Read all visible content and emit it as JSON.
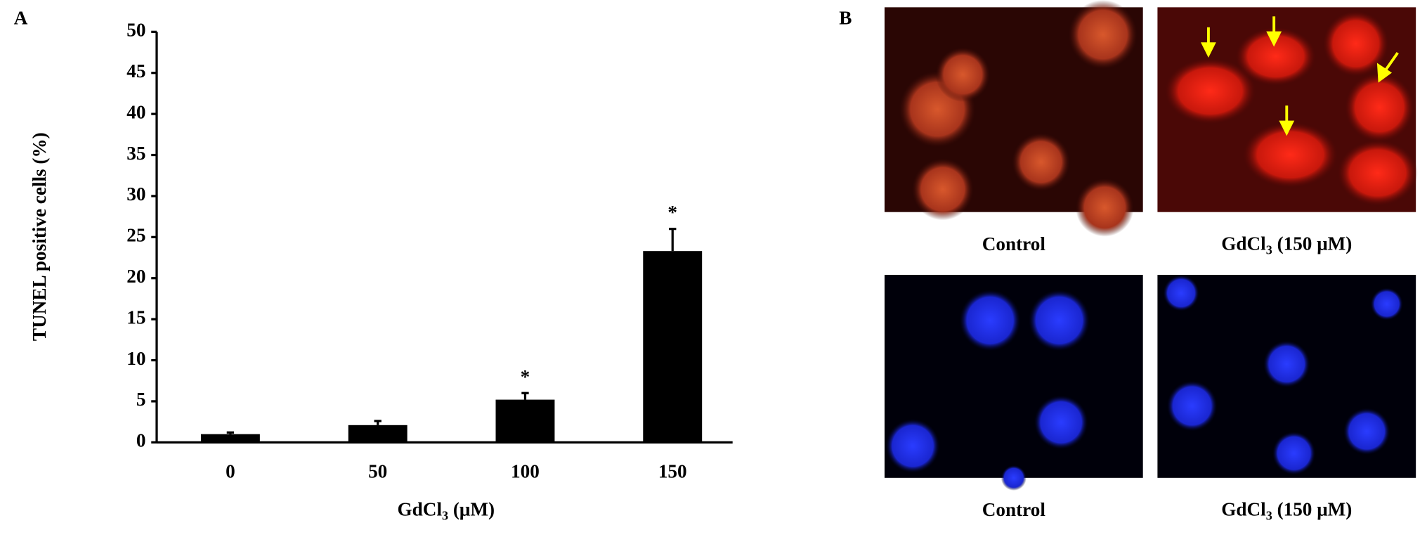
{
  "panel_a_label": "A",
  "chart_data": {
    "type": "bar",
    "y_label": "TUNEL positive cells (%)",
    "x_label": {
      "main": "GdCl",
      "subscript": "3",
      "rest": " (μM)"
    },
    "categories": [
      "0",
      "50",
      "100",
      "150"
    ],
    "values": [
      1.0,
      2.1,
      5.2,
      23.3
    ],
    "errors": [
      0.2,
      0.5,
      0.8,
      2.7
    ],
    "color": "#000000",
    "ylim": [
      0,
      50
    ],
    "yticks": [
      0,
      5,
      10,
      15,
      20,
      25,
      30,
      35,
      40,
      45,
      50
    ],
    "annotations": [
      {
        "text": "*",
        "category": "100"
      },
      {
        "text": "*",
        "category": "150"
      }
    ]
  },
  "panel_b": {
    "label": "B",
    "captions": [
      {
        "main": "Control"
      },
      {
        "main": "GdCl",
        "subscript": "3",
        "rest": " (150 μM)"
      },
      {
        "main": "Control"
      },
      {
        "main": "GdCl",
        "subscript": "3",
        "rest": " (150 μM)"
      }
    ]
  }
}
